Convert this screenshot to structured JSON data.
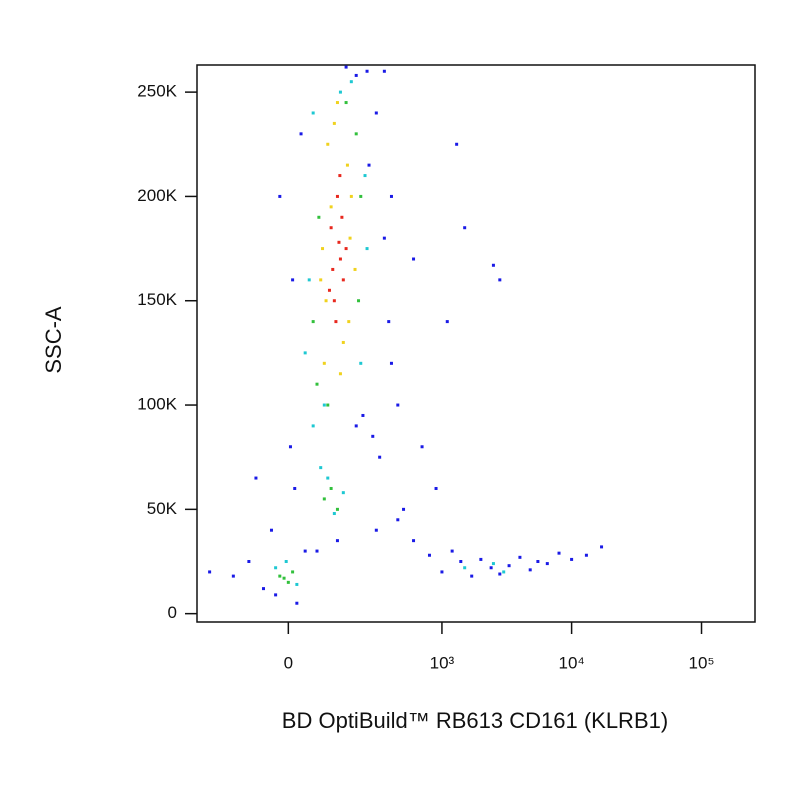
{
  "chart_data": {
    "type": "scatter",
    "x_label": "BD OptiBuild™ RB613 CD161 (KLRB1)",
    "y_label": "SSC-A",
    "xscale": "arcsinh",
    "xlim": [
      -320,
      258000
    ],
    "ylim": [
      -4000,
      263000
    ],
    "xticks": [
      0,
      {
        "value": 1000,
        "label": "10³"
      },
      {
        "value": 10000,
        "label": "10⁴"
      },
      {
        "value": 100000,
        "label": "10⁵"
      }
    ],
    "yticks": [
      0,
      {
        "value": 50000,
        "label": "50K"
      },
      {
        "value": 100000,
        "label": "100K"
      },
      {
        "value": 150000,
        "label": "150K"
      },
      {
        "value": 200000,
        "label": "200K"
      },
      {
        "value": 250000,
        "label": "250K"
      }
    ],
    "series": [
      {
        "color": "#1a1ae6",
        "x": [
          -150,
          -100,
          -60,
          -250,
          -30,
          20,
          40,
          260,
          300,
          350,
          400,
          450,
          320,
          280,
          10,
          -20,
          30,
          200,
          500,
          600,
          800,
          1000,
          1200,
          1400,
          1700,
          2000,
          2400,
          2800,
          3300,
          4000,
          4800,
          5500,
          6500,
          8000,
          10000,
          13000,
          17000,
          700,
          900,
          1100,
          1500,
          2500,
          600,
          350,
          250,
          15,
          -40,
          70,
          130,
          200,
          300,
          1300,
          2800,
          450,
          380,
          160,
          230,
          -80,
          5,
          400
        ],
        "values": [
          18000,
          25000,
          12000,
          20000,
          9000,
          5000,
          30000,
          215000,
          240000,
          180000,
          120000,
          100000,
          75000,
          85000,
          160000,
          200000,
          230000,
          258000,
          50000,
          35000,
          28000,
          20000,
          30000,
          25000,
          18000,
          26000,
          22000,
          19000,
          23000,
          27000,
          21000,
          25000,
          24000,
          29000,
          26000,
          28000,
          32000,
          80000,
          60000,
          140000,
          185000,
          167000,
          170000,
          260000,
          260000,
          60000,
          40000,
          30000,
          35000,
          90000,
          40000,
          225000,
          160000,
          45000,
          140000,
          262000,
          95000,
          65000,
          80000,
          200000
        ]
      },
      {
        "color": "#1ec8d2",
        "x": [
          40,
          240,
          50,
          250,
          220,
          60,
          180,
          -30,
          20,
          -5,
          100,
          120,
          80,
          150,
          1500,
          2500,
          3000,
          60,
          140,
          90
        ],
        "values": [
          125000,
          210000,
          160000,
          175000,
          120000,
          240000,
          255000,
          22000,
          14000,
          25000,
          65000,
          48000,
          70000,
          58000,
          22000,
          24000,
          20000,
          90000,
          250000,
          100000
        ]
      },
      {
        "color": "#32c03c",
        "x": [
          70,
          200,
          75,
          210,
          60,
          220,
          100,
          160,
          -10,
          10,
          0,
          -20,
          90,
          110,
          130
        ],
        "values": [
          110000,
          230000,
          190000,
          150000,
          140000,
          200000,
          100000,
          245000,
          17000,
          20000,
          15000,
          18000,
          55000,
          60000,
          50000
        ]
      },
      {
        "color": "#f0d21e",
        "x": [
          90,
          180,
          100,
          170,
          85,
          195,
          120,
          150,
          95,
          165,
          140,
          110,
          130,
          175,
          80
        ],
        "values": [
          120000,
          200000,
          225000,
          140000,
          175000,
          165000,
          235000,
          130000,
          150000,
          215000,
          115000,
          195000,
          245000,
          180000,
          160000
        ]
      },
      {
        "color": "#e8281e",
        "x": [
          120,
          140,
          110,
          150,
          130,
          125,
          145,
          115,
          135,
          160,
          105,
          138
        ],
        "values": [
          150000,
          170000,
          185000,
          160000,
          200000,
          140000,
          190000,
          165000,
          178000,
          175000,
          155000,
          210000
        ]
      }
    ]
  }
}
